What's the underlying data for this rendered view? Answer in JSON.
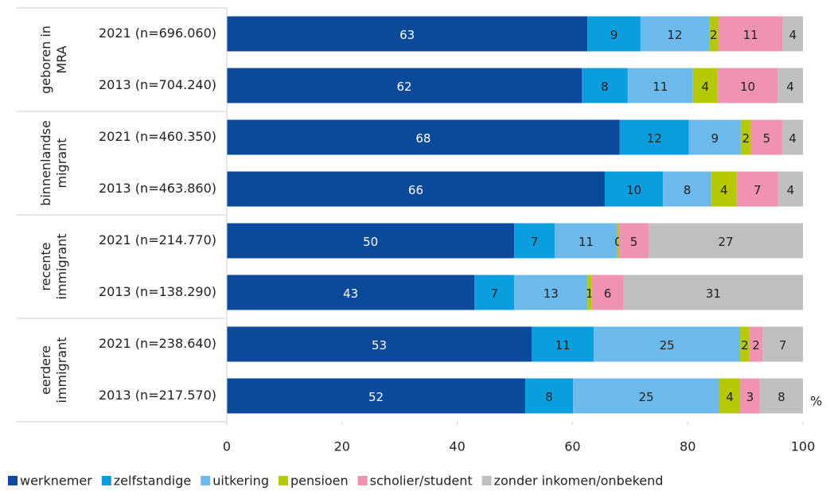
{
  "chart_data": {
    "type": "stacked-barh",
    "groups": [
      [
        "geboren in",
        "MRA"
      ],
      [
        "binnenlandse",
        "migrant"
      ],
      [
        "recente",
        "immigrant"
      ],
      [
        "eerdere",
        "immigrant"
      ]
    ],
    "categories": [
      "2021 (n=696.060)",
      "2013 (n=704.240)",
      "2021 (n=460.350)",
      "2013 (n=463.860)",
      "2021 (n=214.770)",
      "2013 (n=138.290)",
      "2021 (n=238.640)",
      "2013 (n=217.570)"
    ],
    "series": [
      {
        "name": "werknemer",
        "color": "#0b4a9b",
        "values": [
          62.6,
          61.6,
          68.2,
          65.6,
          49.9,
          43.0,
          52.9,
          51.8
        ],
        "value_labels": [
          "63",
          "62",
          "68",
          "66",
          "50",
          "43",
          "53",
          "52"
        ]
      },
      {
        "name": "zelfstandige",
        "color": "#0a9ede",
        "values": [
          9.2,
          8.0,
          12.0,
          10.1,
          7.0,
          6.9,
          10.8,
          8.3
        ],
        "value_labels": [
          "9",
          "8",
          "12",
          "10",
          "7",
          "7",
          "11",
          "8"
        ]
      },
      {
        "name": "uitkering",
        "color": "#6cb9ec",
        "values": [
          11.9,
          11.3,
          9.0,
          8.4,
          10.9,
          12.7,
          25.4,
          25.4
        ],
        "value_labels": [
          "12",
          "11",
          "9",
          "8",
          "11",
          "13",
          "25",
          "25"
        ]
      },
      {
        "name": "pensioen",
        "color": "#b5c800",
        "values": [
          1.6,
          4.3,
          1.8,
          4.4,
          0.3,
          0.7,
          1.6,
          3.6
        ],
        "value_labels": [
          "2",
          "4",
          "2",
          "4",
          "0",
          "1",
          "2",
          "4"
        ]
      },
      {
        "name": "scholier/student",
        "color": "#f093b0",
        "values": [
          11.2,
          10.4,
          5.4,
          7.2,
          5.1,
          5.6,
          2.3,
          3.4
        ],
        "value_labels": [
          "11",
          "10",
          "5",
          "7",
          "5",
          "6",
          "2",
          "3"
        ]
      },
      {
        "name": "zonder inkomen/onbekend",
        "color": "#bfbfbf",
        "values": [
          3.5,
          4.4,
          3.6,
          4.3,
          26.8,
          31.1,
          7.0,
          7.5
        ],
        "value_labels": [
          "4",
          "4",
          "4",
          "4",
          "27",
          "31",
          "7",
          "8"
        ]
      }
    ],
    "xlim": [
      0,
      100
    ],
    "xticks": [
      0,
      20,
      40,
      60,
      80,
      100
    ],
    "x_unit": "%"
  }
}
